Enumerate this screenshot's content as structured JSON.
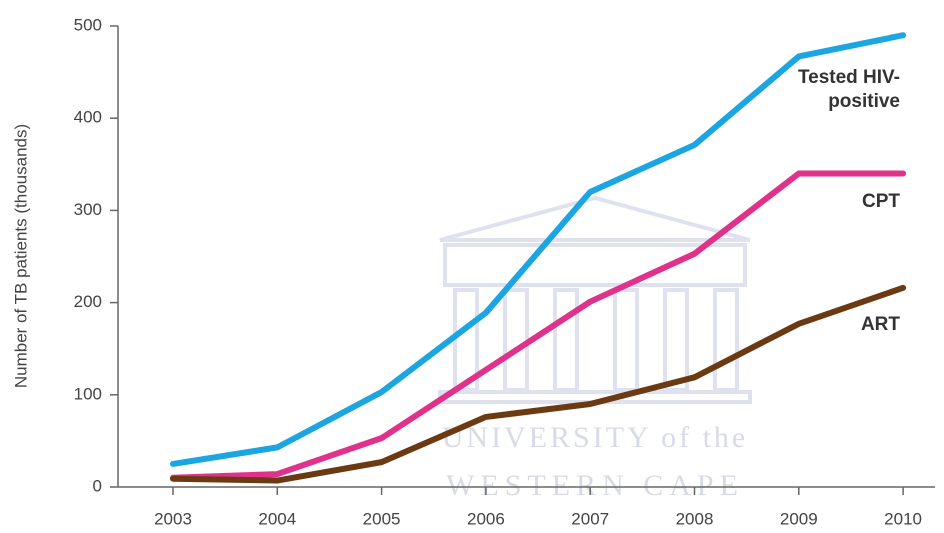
{
  "chart_data": {
    "type": "line",
    "y_label": "Number of TB patients (thousands)",
    "categories": [
      "2003",
      "2004",
      "2005",
      "2006",
      "2007",
      "2008",
      "2009",
      "2010"
    ],
    "series": [
      {
        "name": "Tested HIV-positive",
        "color": "#1ba5e1",
        "values": [
          25,
          43,
          103,
          189,
          320,
          371,
          467,
          490
        ]
      },
      {
        "name": "CPT",
        "color": "#e0328b",
        "values": [
          10,
          14,
          53,
          127,
          201,
          253,
          340,
          340
        ]
      },
      {
        "name": "ART",
        "color": "#6b3a12",
        "values": [
          9,
          7,
          27,
          76,
          90,
          119,
          177,
          216
        ]
      }
    ],
    "ylim": [
      0,
      500
    ],
    "yticks": [
      0,
      100,
      200,
      300,
      400,
      500
    ],
    "grid": false
  },
  "watermark": {
    "line1": "UNIVERSITY of the",
    "line2": "WESTERN CAPE"
  }
}
